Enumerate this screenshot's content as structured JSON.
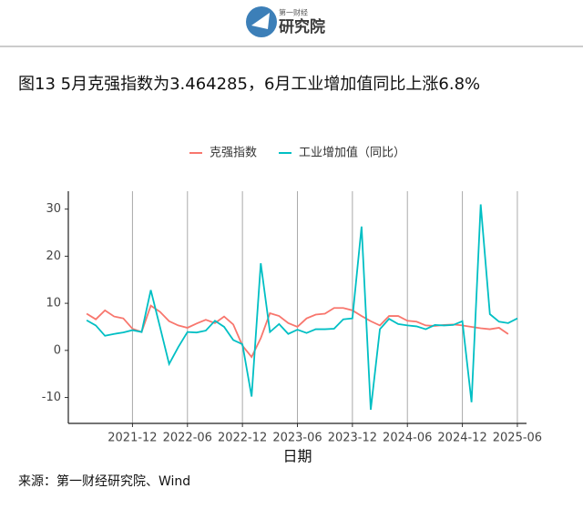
{
  "header": {
    "logo_top": "第一财经",
    "logo_main": "研究院"
  },
  "chart_data": {
    "type": "line",
    "title": "图13 5月克强指数为3.464285，6月工业增加值同比上涨6.8%",
    "x_label": "日期",
    "x": [
      "2021-07",
      "2021-08",
      "2021-09",
      "2021-10",
      "2021-11",
      "2021-12",
      "2022-01",
      "2022-02",
      "2022-03",
      "2022-04",
      "2022-05",
      "2022-06",
      "2022-07",
      "2022-08",
      "2022-09",
      "2022-10",
      "2022-11",
      "2022-12",
      "2023-01",
      "2023-02",
      "2023-03",
      "2023-04",
      "2023-05",
      "2023-06",
      "2023-07",
      "2023-08",
      "2023-09",
      "2023-10",
      "2023-11",
      "2023-12",
      "2024-01",
      "2024-02",
      "2024-03",
      "2024-04",
      "2024-05",
      "2024-06",
      "2024-07",
      "2024-08",
      "2024-09",
      "2024-10",
      "2024-11",
      "2024-12",
      "2025-01",
      "2025-02",
      "2025-03",
      "2025-04",
      "2025-05",
      "2025-06"
    ],
    "series": [
      {
        "name": "克强指数",
        "color": "#F8766D",
        "values": [
          7.8,
          6.6,
          8.5,
          7.2,
          6.8,
          4.6,
          3.9,
          9.5,
          8.2,
          6.2,
          5.3,
          4.8,
          5.7,
          6.5,
          5.8,
          7.2,
          5.5,
          1.0,
          -1.4,
          2.6,
          7.9,
          7.3,
          5.8,
          5.0,
          6.8,
          7.6,
          7.8,
          9.0,
          9.0,
          8.5,
          7.3,
          6.2,
          5.3,
          7.3,
          7.3,
          6.3,
          6.1,
          5.3,
          5.2,
          5.4,
          5.5,
          5.3,
          5.0,
          4.7,
          4.5,
          4.8,
          3.464285,
          null
        ]
      },
      {
        "name": "工业增加值（同比）",
        "color": "#00BFC4",
        "values": [
          6.4,
          5.3,
          3.1,
          3.5,
          3.8,
          4.3,
          3.9,
          12.8,
          5.0,
          -2.9,
          0.7,
          3.9,
          3.8,
          4.2,
          6.3,
          5.0,
          2.2,
          1.3,
          -9.8,
          18.5,
          3.9,
          5.6,
          3.5,
          4.4,
          3.7,
          4.5,
          4.5,
          4.6,
          6.6,
          6.8,
          26.3,
          -12.6,
          4.5,
          6.7,
          5.6,
          5.3,
          5.1,
          4.5,
          5.4,
          5.3,
          5.4,
          6.2,
          -11.0,
          31.0,
          7.7,
          6.1,
          5.8,
          6.8
        ]
      }
    ],
    "xlim": [
      "2021-05",
      "2025-07"
    ],
    "xticks": [
      "2021-12",
      "2022-06",
      "2022-12",
      "2023-06",
      "2023-12",
      "2024-06",
      "2024-12",
      "2025-06"
    ],
    "ylim": [
      -15.5,
      33.8
    ],
    "yticks": [
      -10,
      0,
      10,
      20,
      30
    ],
    "grid": "x",
    "legend": "top"
  },
  "source": "来源：第一财经研究院、Wind"
}
